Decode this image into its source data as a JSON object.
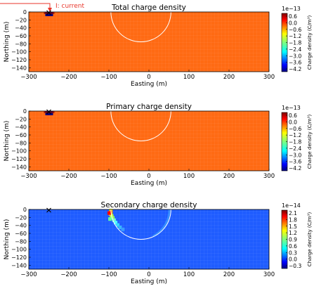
{
  "annotation": {
    "text": "I: current",
    "color": "#e8362b"
  },
  "chart_data": [
    {
      "type": "heatmap",
      "title": "Total charge density",
      "xlabel": "Easting (m)",
      "ylabel": "Northing (m)",
      "xlim": [
        -300,
        300
      ],
      "ylim": [
        -150,
        0
      ],
      "xticks": [
        "−300",
        "−200",
        "−100",
        "0",
        "100",
        "200",
        "300"
      ],
      "yticks": [
        "0",
        "−20",
        "−40",
        "−60",
        "−80",
        "−100",
        "−120",
        "−140"
      ],
      "background_value": 0.0,
      "background_color": "#ff6a13",
      "source": {
        "x": -250,
        "y": 0,
        "marker": "x",
        "peak_value": -4.2
      },
      "sphere": {
        "center_x": -20,
        "center_y": 0,
        "radius": 75
      },
      "colorbar": {
        "label": "Charge density (C/m³)",
        "exponent": "1e−13",
        "ticks": [
          "0.6",
          "0.0",
          "−0.6",
          "−1.2",
          "−1.8",
          "−2.4",
          "−3.0",
          "−3.6",
          "−4.2"
        ],
        "min": -4.2,
        "max": 0.6
      }
    },
    {
      "type": "heatmap",
      "title": "Primary charge density",
      "xlabel": "Easting (m)",
      "ylabel": "Northing (m)",
      "xlim": [
        -300,
        300
      ],
      "ylim": [
        -150,
        0
      ],
      "xticks": [
        "−300",
        "−200",
        "−100",
        "0",
        "100",
        "200",
        "300"
      ],
      "yticks": [
        "0",
        "−20",
        "−40",
        "−60",
        "−80",
        "−100",
        "−120",
        "−140"
      ],
      "background_value": 0.0,
      "background_color": "#ff6a13",
      "source": {
        "x": -250,
        "y": 0,
        "marker": "x",
        "peak_value": -4.2
      },
      "sphere": {
        "center_x": -20,
        "center_y": 0,
        "radius": 75
      },
      "colorbar": {
        "label": "Charge density (C/m³)",
        "exponent": "1e−13",
        "ticks": [
          "0.6",
          "0.0",
          "−0.6",
          "−1.2",
          "−1.8",
          "−2.4",
          "−3.0",
          "−3.6",
          "−4.2"
        ],
        "min": -4.2,
        "max": 0.6
      }
    },
    {
      "type": "heatmap",
      "title": "Secondary charge density",
      "xlabel": "Easting (m)",
      "ylabel": "Northing (m)",
      "xlim": [
        -300,
        300
      ],
      "ylim": [
        -150,
        0
      ],
      "xticks": [
        "−300",
        "−200",
        "−100",
        "0",
        "100",
        "200",
        "300"
      ],
      "yticks": [
        "0",
        "−20",
        "−40",
        "−60",
        "−80",
        "−100",
        "−120",
        "−140"
      ],
      "background_value": 0.0,
      "background_color": "#1f5cff",
      "source": {
        "x": -250,
        "y": 0,
        "marker": "x"
      },
      "sphere": {
        "center_x": -20,
        "center_y": 0,
        "radius": 75
      },
      "colorbar": {
        "label": "Charge density (C/m³)",
        "exponent": "1e−14",
        "ticks": [
          "2.1",
          "1.8",
          "1.5",
          "1.2",
          "0.9",
          "0.6",
          "0.3",
          "0.0",
          "−0.3"
        ],
        "min": -0.45,
        "max": 2.2
      }
    }
  ]
}
